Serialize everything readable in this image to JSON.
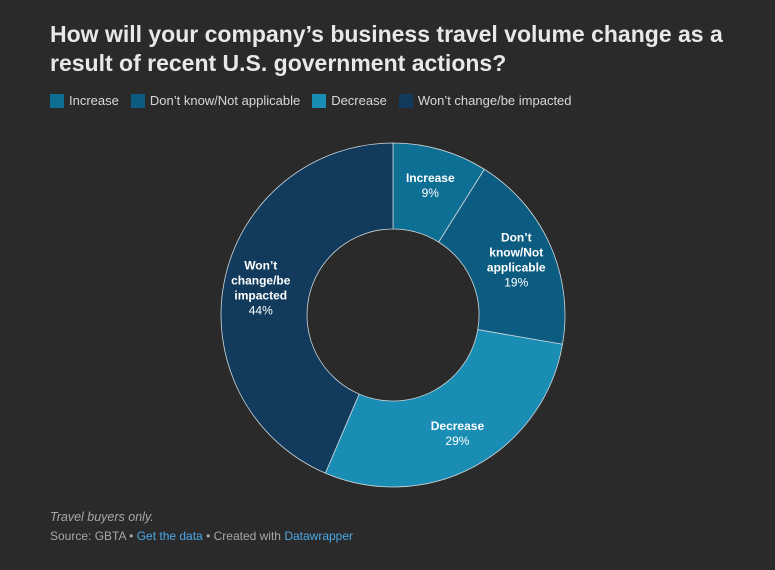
{
  "chart_data": {
    "type": "pie",
    "donut": true,
    "title": "How will your company’s business travel volume change as a result of recent U.S. government actions?",
    "legend_position": "top-left",
    "slices": [
      {
        "name": "Increase",
        "value": 9,
        "value_label": "9%",
        "color": "#0e6f94",
        "label_lines": [
          "Increase"
        ]
      },
      {
        "name": "Don’t know/Not applicable",
        "value": 19,
        "value_label": "19%",
        "color": "#0b5c80",
        "label_lines": [
          "Don’t",
          "know/Not",
          "applicable"
        ]
      },
      {
        "name": "Decrease",
        "value": 29,
        "value_label": "29%",
        "color": "#1a8db5",
        "label_lines": [
          "Decrease"
        ]
      },
      {
        "name": "Won’t change/be impacted",
        "value": 44,
        "value_label": "44%",
        "color": "#113a5c",
        "label_lines": [
          "Won’t",
          "change/be",
          "impacted"
        ]
      }
    ]
  },
  "footer": {
    "note": "Travel buyers only.",
    "source_prefix": "Source: GBTA",
    "separator": " • ",
    "get_data": "Get the data",
    "created_with": "Created with",
    "datawrapper": "Datawrapper"
  }
}
